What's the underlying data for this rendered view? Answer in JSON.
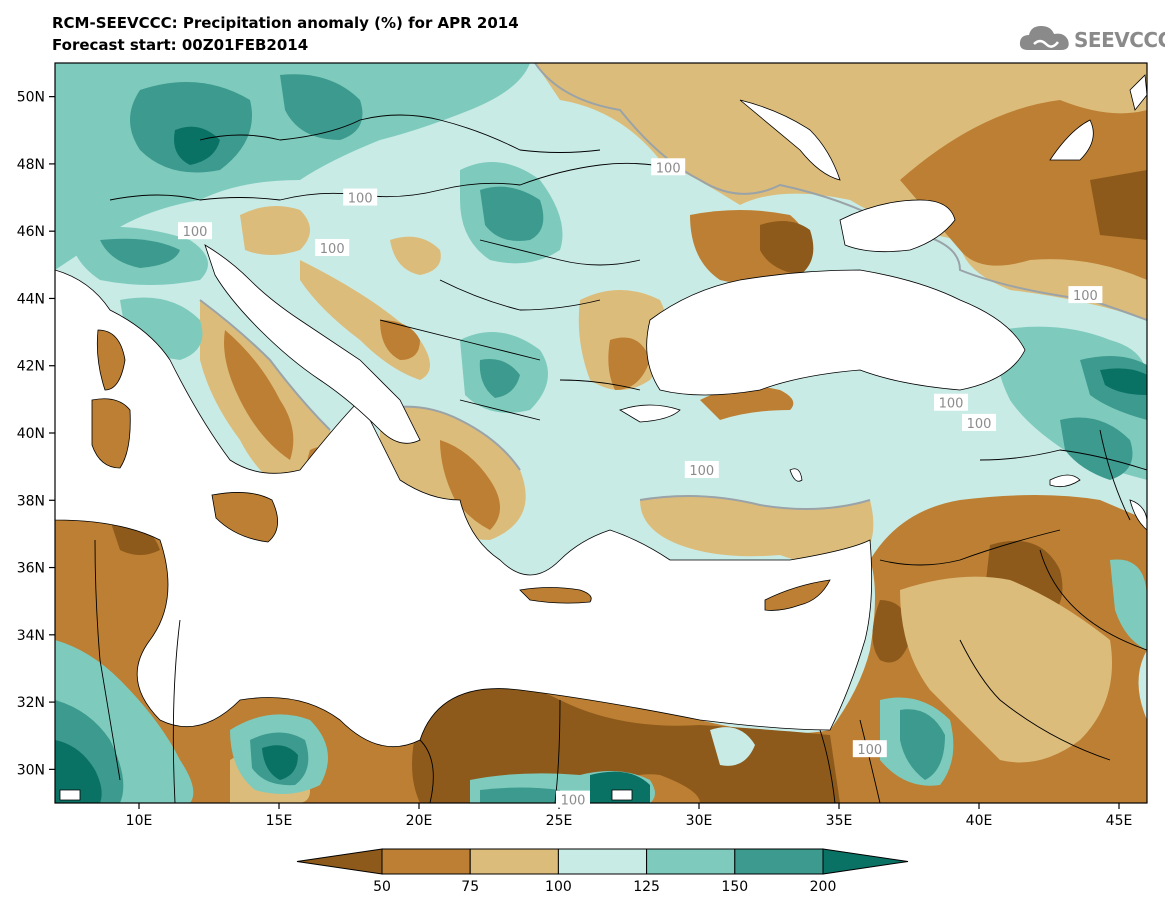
{
  "header": {
    "title": "RCM-SEEVCCC: Precipitation anomaly (%) for APR 2014",
    "subtitle": "Forecast start: 00Z01FEB2014"
  },
  "logo": {
    "text": "SEEVCCC",
    "icon": "cloud-icon"
  },
  "map": {
    "lon_range": [
      7,
      46
    ],
    "lat_range": [
      29,
      51
    ],
    "lat_ticks": [
      {
        "label": "50N",
        "value": 50
      },
      {
        "label": "48N",
        "value": 48
      },
      {
        "label": "46N",
        "value": 46
      },
      {
        "label": "44N",
        "value": 44
      },
      {
        "label": "42N",
        "value": 42
      },
      {
        "label": "40N",
        "value": 40
      },
      {
        "label": "38N",
        "value": 38
      },
      {
        "label": "36N",
        "value": 36
      },
      {
        "label": "34N",
        "value": 34
      },
      {
        "label": "32N",
        "value": 32
      },
      {
        "label": "30N",
        "value": 30
      }
    ],
    "lon_ticks": [
      {
        "label": "10E",
        "value": 10
      },
      {
        "label": "15E",
        "value": 15
      },
      {
        "label": "20E",
        "value": 20
      },
      {
        "label": "25E",
        "value": 25
      },
      {
        "label": "30E",
        "value": 30
      },
      {
        "label": "35E",
        "value": 35
      },
      {
        "label": "40E",
        "value": 40
      },
      {
        "label": "45E",
        "value": 45
      }
    ],
    "contour_labels": [
      {
        "text": "100",
        "lon": 12.0,
        "lat": 46.0
      },
      {
        "text": "100",
        "lon": 17.9,
        "lat": 47.0
      },
      {
        "text": "100",
        "lon": 16.9,
        "lat": 45.5
      },
      {
        "text": "100",
        "lon": 28.9,
        "lat": 47.9
      },
      {
        "text": "100",
        "lon": 43.8,
        "lat": 44.1
      },
      {
        "text": "100",
        "lon": 40.0,
        "lat": 40.3
      },
      {
        "text": "100",
        "lon": 39.0,
        "lat": 40.9
      },
      {
        "text": "100",
        "lon": 30.1,
        "lat": 38.9
      },
      {
        "text": "100",
        "lon": 36.1,
        "lat": 30.6
      },
      {
        "text": "100",
        "lon": 25.5,
        "lat": 29.1
      }
    ]
  },
  "colorbar": {
    "colors": [
      "#8d5a1b",
      "#bc7f33",
      "#dcbc7a",
      "#c9ebe6",
      "#7ecbbd",
      "#3d9a8e",
      "#0a7265"
    ],
    "labels": [
      "50",
      "75",
      "100",
      "125",
      "150",
      "200"
    ]
  },
  "colors": {
    "land_default": "#c9ebe6",
    "sea": "#ffffff",
    "contour_line": "#9aa3a8",
    "border": "#000000"
  }
}
